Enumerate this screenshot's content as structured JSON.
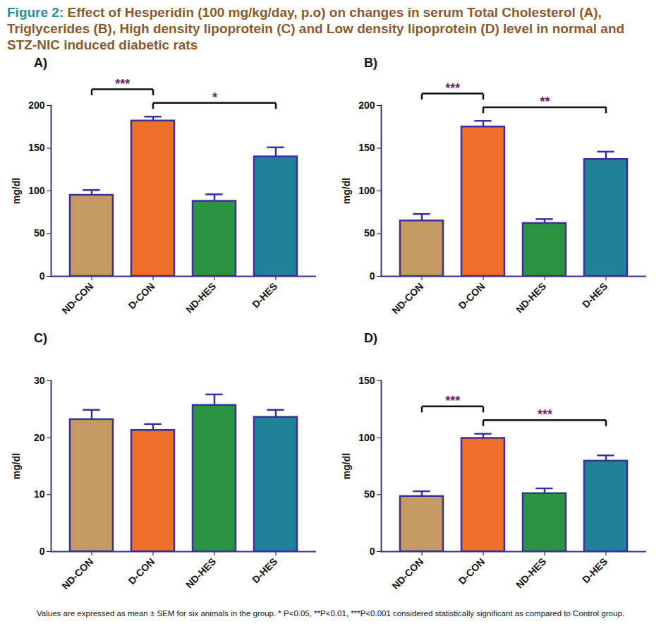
{
  "figure_label": "Figure 2:",
  "title": "Effect of Hesperidin (100 mg/kg/day, p.o) on changes in serum Total Cholesterol (A), Triglycerides (B), High density lipoprotein (C) and Low density lipoprotein (D) level in normal and STZ-NIC induced diabetic rats",
  "caption": "Values are expressed as mean ± SEM for six animals in the group. * P<0.05, **P<0.01, ***P<0.001 considered statistically significant as compared to Control group.",
  "chart_data": [
    {
      "type": "bar",
      "title": "A)",
      "ylabel": "mg/dl",
      "categories": [
        "ND-CON",
        "D-CON",
        "ND-HES",
        "D-HES"
      ],
      "values": [
        95,
        182,
        88,
        140
      ],
      "errors": [
        6,
        5,
        8,
        11
      ],
      "colors": [
        "#c49a62",
        "#f07029",
        "#2b9442",
        "#1f8299"
      ],
      "ylim": [
        0,
        200
      ],
      "yticks": [
        0,
        50,
        100,
        150,
        200
      ],
      "annotations": [
        {
          "from": "D-CON",
          "to": "D-HES",
          "label": "*"
        },
        {
          "from": "ND-CON",
          "to": "D-CON",
          "label": "***"
        }
      ]
    },
    {
      "type": "bar",
      "title": "B)",
      "ylabel": "mg/dl",
      "categories": [
        "ND-CON",
        "D-CON",
        "ND-HES",
        "D-HES"
      ],
      "values": [
        65,
        175,
        62,
        137
      ],
      "errors": [
        8,
        7,
        5,
        9
      ],
      "colors": [
        "#c49a62",
        "#f07029",
        "#2b9442",
        "#1f8299"
      ],
      "ylim": [
        0,
        200
      ],
      "yticks": [
        0,
        50,
        100,
        150,
        200
      ],
      "annotations": [
        {
          "from": "D-CON",
          "to": "D-HES",
          "label": "**"
        },
        {
          "from": "ND-CON",
          "to": "D-CON",
          "label": "***"
        }
      ]
    },
    {
      "type": "bar",
      "title": "C)",
      "ylabel": "mg/dl",
      "categories": [
        "ND-CON",
        "D-CON",
        "ND-HES",
        "D-HES"
      ],
      "values": [
        23.2,
        21.3,
        25.7,
        23.6
      ],
      "errors": [
        1.7,
        1.1,
        1.9,
        1.3
      ],
      "colors": [
        "#c49a62",
        "#f07029",
        "#2b9442",
        "#1f8299"
      ],
      "ylim": [
        0,
        30
      ],
      "yticks": [
        0,
        10,
        20,
        30
      ],
      "annotations": []
    },
    {
      "type": "bar",
      "title": "D)",
      "ylabel": "mg/dl",
      "categories": [
        "ND-CON",
        "D-CON",
        "ND-HES",
        "D-HES"
      ],
      "values": [
        48.5,
        99.5,
        51,
        79.5
      ],
      "errors": [
        4.5,
        4,
        4.5,
        5
      ],
      "colors": [
        "#c49a62",
        "#f07029",
        "#2b9442",
        "#1f8299"
      ],
      "ylim": [
        0,
        150
      ],
      "yticks": [
        0,
        50,
        100,
        150
      ],
      "annotations": [
        {
          "from": "D-CON",
          "to": "D-HES",
          "label": "***"
        },
        {
          "from": "ND-CON",
          "to": "D-CON",
          "label": "***"
        }
      ]
    }
  ]
}
